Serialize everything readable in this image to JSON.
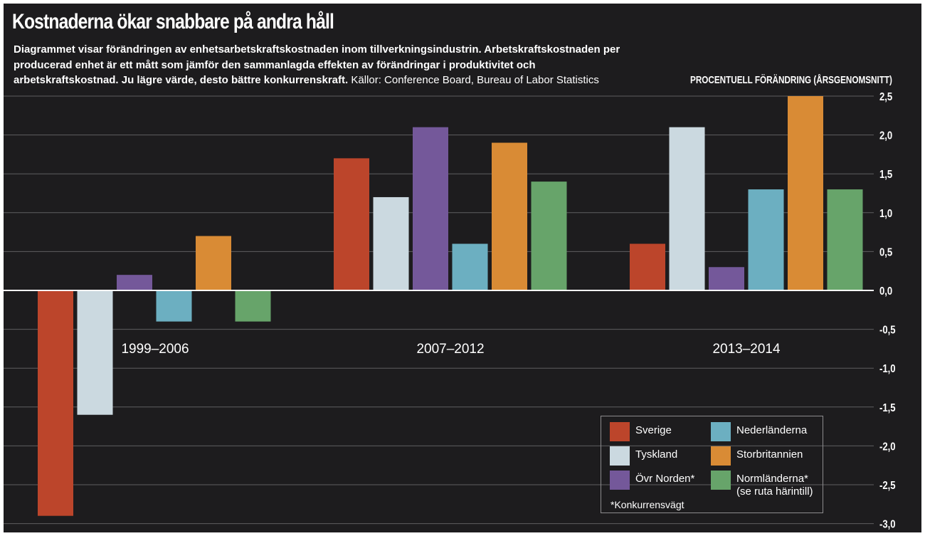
{
  "title": "Kostnaderna ökar snabbare på andra håll",
  "description": {
    "bold_text": "Diagrammet visar förändringen av enhetsarbetskraftskostnaden inom tillverkningsindustrin. Arbetskraftskostnaden per producerad enhet är ett mått som jämför den sammanlagda effekten av förändringar i produktivitet och arbetskraftskostnad. Ju lägre värde, desto bättre konkurrenskraft.",
    "source_text": "Källor: Conference Board, Bureau of Labor Statistics"
  },
  "colors": {
    "background": "#1d1c1e",
    "Sverige": "#bc452b",
    "Tyskland": "#cbd9e0",
    "Övr Norden": "#74589a",
    "Nederländerna": "#6cafc1",
    "Storbritannien": "#d98b35",
    "Normländerna": "#67a46a"
  },
  "legend": {
    "items": [
      {
        "label": "Sverige",
        "key": "Sverige"
      },
      {
        "label": "Tyskland",
        "key": "Tyskland"
      },
      {
        "label": "Övr Norden*",
        "key": "Övr Norden"
      },
      {
        "label": "Nederländerna",
        "key": "Nederländerna"
      },
      {
        "label": "Storbritannien",
        "key": "Storbritannien"
      },
      {
        "label": "Normländerna* (se ruta härintill)",
        "key": "Normländerna"
      }
    ],
    "footnote": "*Konkurrensvägt"
  },
  "chart_data": {
    "type": "bar",
    "title": "Kostnaderna ökar snabbare på andra håll",
    "ylabel": "PROCENTUELL FÖRÄNDRING (ÅRSGENOMSNITT)",
    "xlabel": "",
    "categories": [
      "1999–2006",
      "2007–2012",
      "2013–2014"
    ],
    "series": [
      {
        "name": "Sverige",
        "values": [
          -2.9,
          1.7,
          0.6
        ]
      },
      {
        "name": "Tyskland",
        "values": [
          -1.6,
          1.2,
          2.1
        ]
      },
      {
        "name": "Övr Norden",
        "values": [
          0.2,
          2.1,
          0.3
        ]
      },
      {
        "name": "Nederländerna",
        "values": [
          -0.4,
          0.6,
          1.3
        ]
      },
      {
        "name": "Storbritannien",
        "values": [
          0.7,
          1.9,
          2.5
        ]
      },
      {
        "name": "Normländerna",
        "values": [
          -0.4,
          1.4,
          1.3
        ]
      }
    ],
    "ylim": [
      -3.0,
      2.5
    ],
    "yticks": [
      2.5,
      2.0,
      1.5,
      1.0,
      0.5,
      0.0,
      -0.5,
      -1.0,
      -1.5,
      -2.0,
      -2.5,
      -3.0
    ],
    "ytick_labels": [
      "2,5",
      "2,0",
      "1,5",
      "1,0",
      "0,5",
      "0,0",
      "-0,5",
      "-1,0",
      "-1,5",
      "-2,0",
      "-2,5",
      "-3,0"
    ],
    "grid": true,
    "y_axis_side": "right",
    "legend_position": "bottom-right"
  }
}
